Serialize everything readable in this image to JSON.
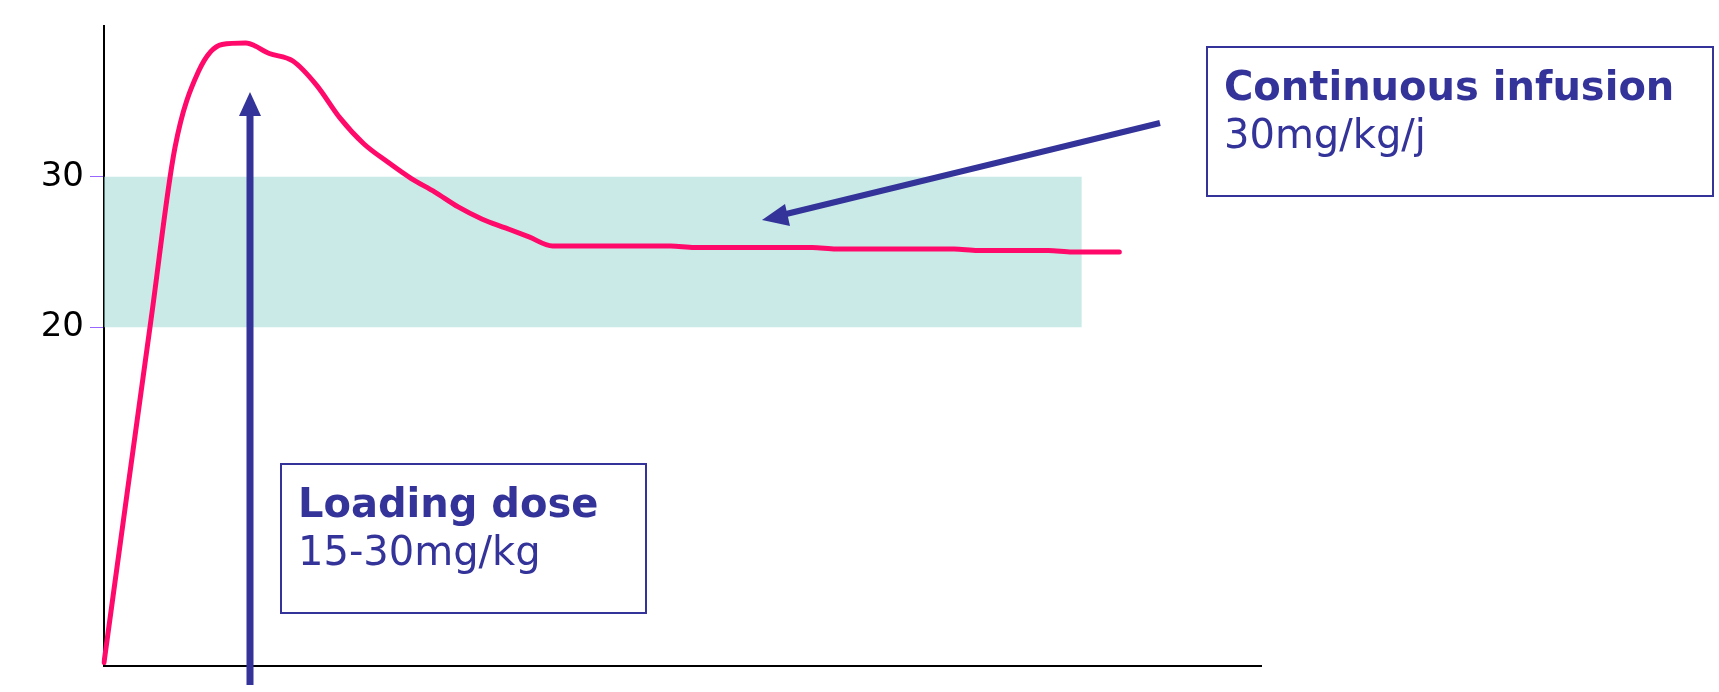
{
  "chart_data": {
    "type": "line",
    "categories": [
      null,
      null,
      null,
      null,
      null,
      null,
      null,
      null,
      null,
      null,
      null,
      null,
      null,
      null,
      null,
      null,
      null,
      null,
      null,
      null,
      null,
      null,
      null,
      null,
      null,
      null,
      null,
      null,
      null,
      null,
      null,
      null,
      null,
      null,
      null,
      null,
      null,
      null,
      null,
      null,
      null,
      null,
      null,
      null,
      null,
      null,
      null,
      null,
      null,
      null
    ],
    "series": [
      {
        "color": "#ff0a6a",
        "values": [
          -2.3,
          9.2,
          20.6,
          31.9,
          37.0,
          38.8,
          38.9,
          38.2,
          37.7,
          36.1,
          33.9,
          32.2,
          31.0,
          29.9,
          29.0,
          28.0,
          27.2,
          26.6,
          26.0,
          25.4,
          25.4,
          25.4,
          25.4,
          25.4,
          25.4,
          25.3,
          25.3,
          25.3,
          25.3,
          25.3,
          25.3,
          25.2,
          25.2,
          25.2,
          25.2,
          25.2,
          25.2,
          25.1,
          25.1,
          25.1,
          25.1,
          25.0,
          25.0,
          25.0,
          null,
          null,
          null,
          null,
          null,
          null
        ]
      }
    ],
    "ylim": [
      -2.5,
      40
    ],
    "yticks": [
      20,
      30
    ],
    "bands": [
      {
        "axis": "y",
        "from": 20,
        "to": 30,
        "color": "#9fd9d4"
      }
    ],
    "annotations": [
      "Loading dose\n15-30mg/kg",
      "Continuous infusion\n30mg/kg/j"
    ],
    "grid": false,
    "legend": false,
    "tick_labels": "y",
    "marker": "none",
    "line_style": "solid"
  }
}
